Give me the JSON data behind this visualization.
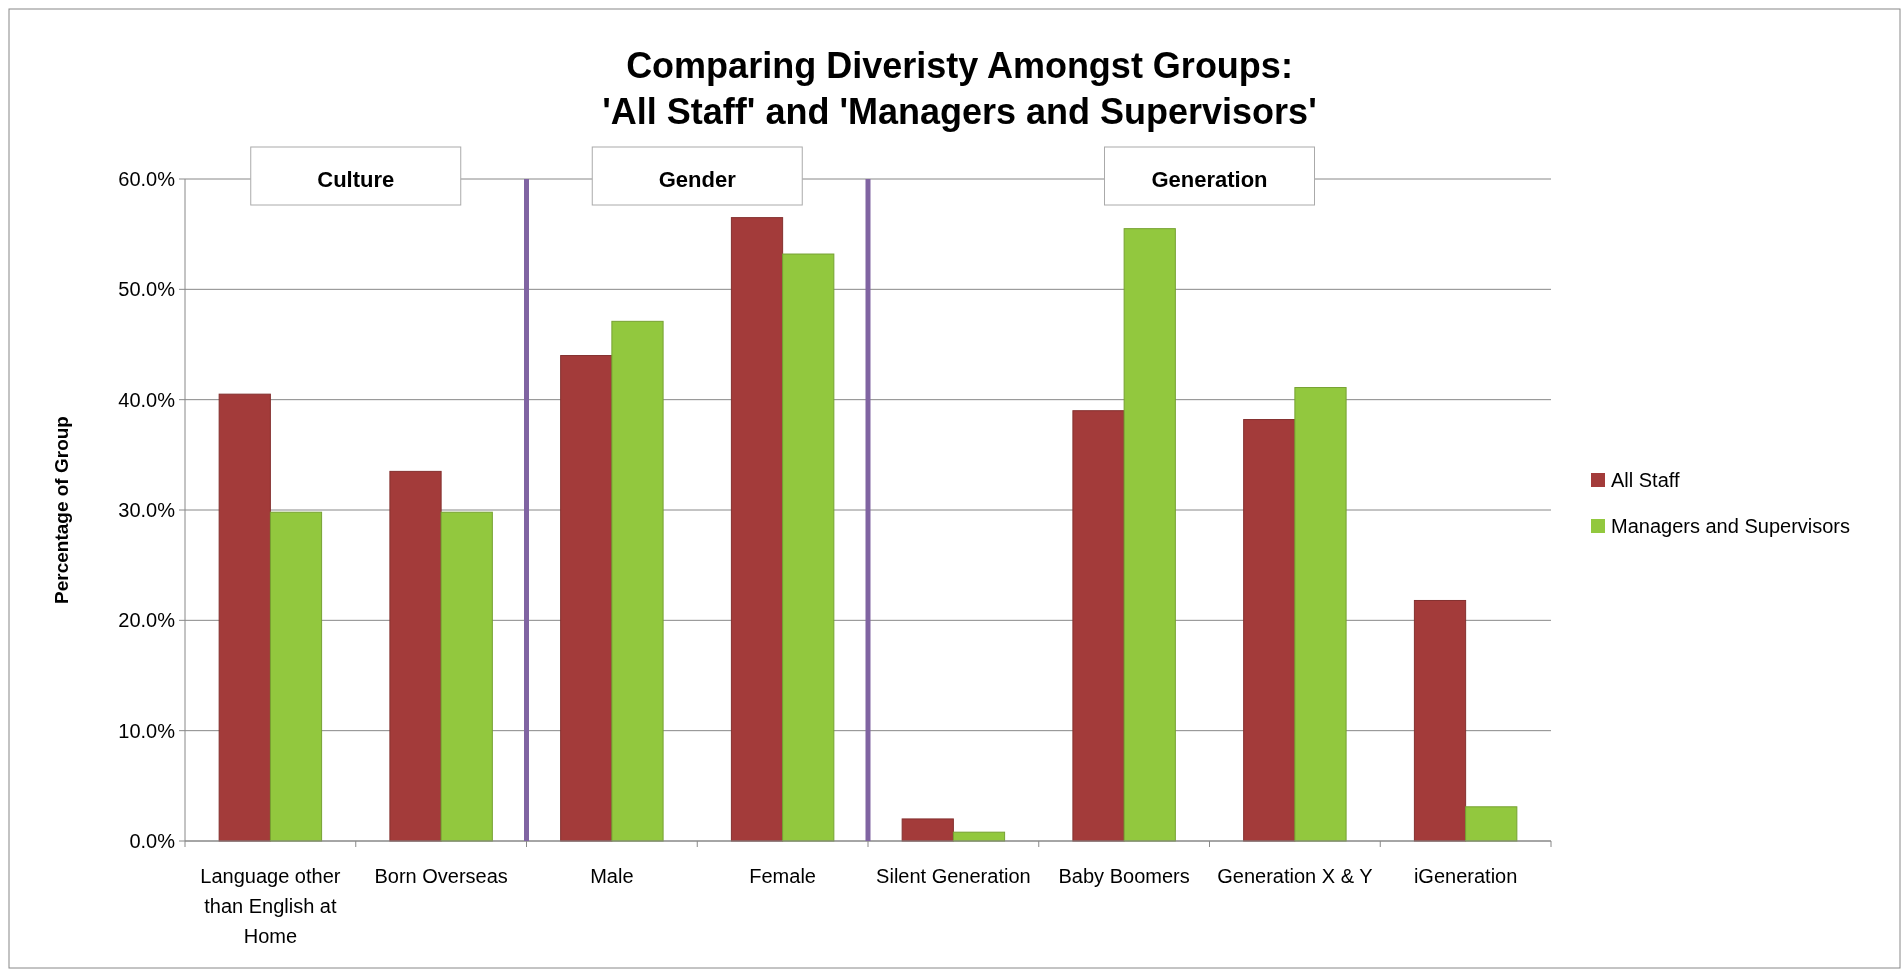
{
  "chart_data": {
    "type": "bar",
    "title": "Comparing Diveristy Amongst Groups:\n'All Staff' and 'Managers and Supervisors'",
    "ylabel": "Percentage of Group",
    "categories": [
      "Language other than English at Home",
      "Born Overseas",
      "Male",
      "Female",
      "Silent Generation",
      "Baby Boomers",
      "Generation X & Y",
      "iGeneration"
    ],
    "series": [
      {
        "name": "All Staff",
        "color": "#a33b3a",
        "values": [
          40.5,
          33.5,
          44.0,
          56.5,
          2.0,
          39.0,
          38.2,
          21.8
        ]
      },
      {
        "name": "Managers and Supervisors",
        "color": "#92c83e",
        "values": [
          29.8,
          29.8,
          47.1,
          53.2,
          0.8,
          55.5,
          41.1,
          3.1
        ]
      }
    ],
    "ylim": [
      0,
      60
    ],
    "yticks": [
      {
        "value": 0,
        "label": "0.0%"
      },
      {
        "value": 10,
        "label": "10.0%"
      },
      {
        "value": 20,
        "label": "20.0%"
      },
      {
        "value": 30,
        "label": "30.0%"
      },
      {
        "value": 40,
        "label": "40.0%"
      },
      {
        "value": 50,
        "label": "50.0%"
      },
      {
        "value": 60,
        "label": "60.0%"
      }
    ],
    "grid": "y",
    "legend": "right",
    "annotations": [
      "Culture",
      "Gender",
      "Generation"
    ]
  }
}
